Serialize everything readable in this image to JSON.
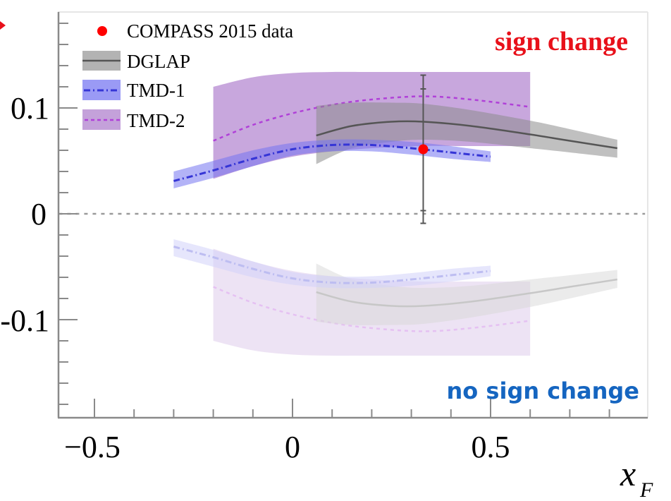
{
  "chart_data": {
    "type": "line",
    "title": "",
    "xlabel": "x",
    "xlabel_subscript": "F",
    "ylabel": "",
    "xlim": [
      -0.59,
      0.89
    ],
    "ylim": [
      -0.19,
      0.19
    ],
    "x_ticks": [
      {
        "value": -0.5,
        "label": "−0.5"
      },
      {
        "value": 0,
        "label": "0"
      },
      {
        "value": 0.5,
        "label": "0.5"
      }
    ],
    "y_ticks": [
      {
        "value": 0.1,
        "label": "0.1"
      },
      {
        "value": 0,
        "label": "0"
      },
      {
        "value": -0.1,
        "label": "-0.1"
      }
    ],
    "zero_line": true,
    "legend_position": "top-left",
    "legend": [
      {
        "name": "COMPASS 2015 data",
        "kind": "marker"
      },
      {
        "name": "DGLAP",
        "kind": "band-solid"
      },
      {
        "name": "TMD-1",
        "kind": "band-dashdot"
      },
      {
        "name": "TMD-2",
        "kind": "band-dashed"
      }
    ],
    "annotations": [
      {
        "text": "sign change",
        "color": "#e8101a",
        "position": "top-right"
      },
      {
        "text": "no sign change",
        "color": "#1565c0",
        "position": "bottom-right"
      }
    ],
    "data_points": [
      {
        "name": "COMPASS 2015 data",
        "x": 0.33,
        "y": 0.061,
        "err_stat": [
          0.003,
          0.118
        ],
        "err_total": [
          -0.009,
          0.131
        ],
        "color": "#ff0000"
      }
    ],
    "series": [
      {
        "name": "DGLAP",
        "color": "#555555",
        "band_color": "#8c8c8c",
        "x": [
          0.06,
          0.15,
          0.25,
          0.33,
          0.45,
          0.6,
          0.7,
          0.82
        ],
        "y": [
          0.074,
          0.083,
          0.087,
          0.087,
          0.083,
          0.075,
          0.069,
          0.062
        ],
        "y_low": [
          0.047,
          0.062,
          0.068,
          0.07,
          0.068,
          0.062,
          0.058,
          0.053
        ],
        "y_high": [
          0.102,
          0.105,
          0.105,
          0.104,
          0.098,
          0.088,
          0.08,
          0.07
        ]
      },
      {
        "name": "TMD-1",
        "color": "#3535d6",
        "band_color": "#7575f0",
        "x": [
          -0.3,
          -0.2,
          -0.1,
          0.0,
          0.1,
          0.2,
          0.3,
          0.4,
          0.5
        ],
        "y": [
          0.031,
          0.041,
          0.052,
          0.061,
          0.065,
          0.065,
          0.062,
          0.058,
          0.054
        ],
        "y_low": [
          0.024,
          0.034,
          0.045,
          0.055,
          0.059,
          0.059,
          0.056,
          0.052,
          0.049
        ],
        "y_high": [
          0.04,
          0.05,
          0.06,
          0.067,
          0.07,
          0.07,
          0.068,
          0.064,
          0.059
        ]
      },
      {
        "name": "TMD-2",
        "color": "#b040d8",
        "band_color": "#a36cc6",
        "x": [
          -0.2,
          -0.1,
          0.0,
          0.1,
          0.2,
          0.33,
          0.45,
          0.6
        ],
        "y": [
          0.069,
          0.084,
          0.095,
          0.103,
          0.108,
          0.111,
          0.108,
          0.101
        ],
        "y_low": [
          0.033,
          0.045,
          0.054,
          0.059,
          0.062,
          0.064,
          0.064,
          0.064
        ],
        "y_high": [
          0.12,
          0.129,
          0.133,
          0.134,
          0.134,
          0.134,
          0.134,
          0.134
        ]
      }
    ],
    "mirrored_negative_series": true
  }
}
